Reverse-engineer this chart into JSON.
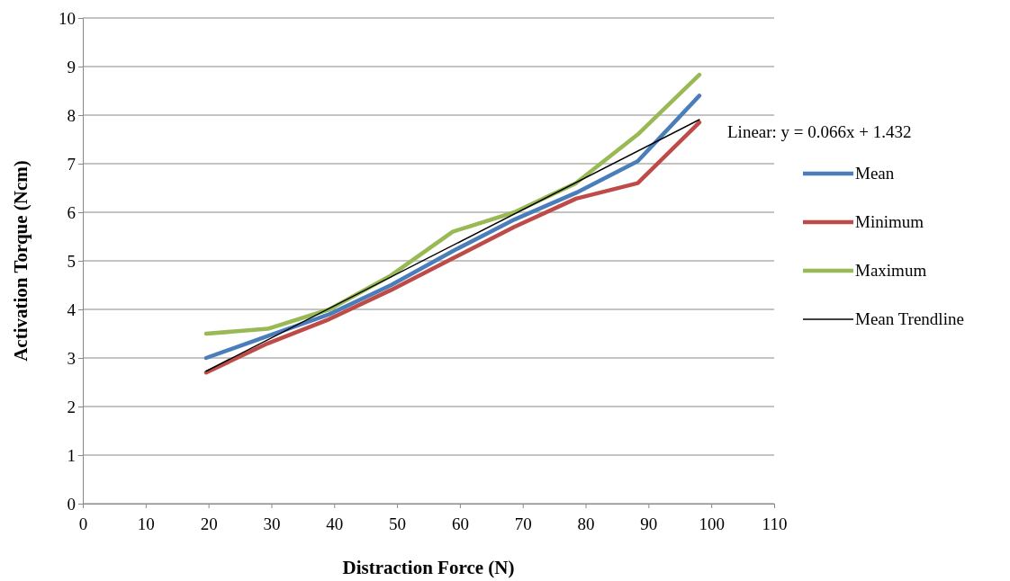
{
  "chart_data": {
    "type": "line",
    "xlabel": "Distraction Force (N)",
    "ylabel": "Activation Torque (Ncm)",
    "xlim": [
      0,
      110
    ],
    "xticks": [
      0,
      10,
      20,
      30,
      40,
      50,
      60,
      70,
      80,
      90,
      100,
      110
    ],
    "ylim": [
      0,
      10
    ],
    "yticks": [
      0,
      1,
      2,
      3,
      4,
      5,
      6,
      7,
      8,
      9,
      10
    ],
    "grid": "y",
    "legend": "right",
    "marker": "none",
    "line_style": "solid",
    "annotations": [
      "Linear: y = 0.066x + 1.432"
    ],
    "series": [
      {
        "name": "Mean",
        "color": "#4a7ebb",
        "x": [
          19.62,
          29.43,
          39.24,
          49.05,
          58.86,
          68.67,
          78.48,
          88.29,
          98.1
        ],
        "values": [
          3.0,
          3.45,
          3.9,
          4.5,
          5.2,
          5.85,
          6.4,
          7.05,
          8.4
        ]
      },
      {
        "name": "Minimum",
        "color": "#be4b48",
        "x": [
          19.62,
          29.43,
          39.24,
          49.05,
          58.86,
          68.67,
          78.48,
          88.29,
          98.1
        ],
        "values": [
          2.7,
          3.3,
          3.8,
          4.4,
          5.05,
          5.7,
          6.28,
          6.6,
          7.85
        ]
      },
      {
        "name": "Maximum",
        "color": "#98b954",
        "x": [
          19.62,
          29.43,
          39.24,
          49.05,
          58.86,
          68.67,
          78.48,
          88.29,
          98.1
        ],
        "values": [
          3.5,
          3.6,
          4.0,
          4.7,
          5.6,
          6.0,
          6.6,
          7.6,
          8.83
        ]
      },
      {
        "name": "Mean Trendline",
        "type": "line",
        "color": "#000000",
        "x": [
          19.62,
          98.1
        ],
        "values": [
          2.727,
          7.907
        ]
      }
    ]
  }
}
